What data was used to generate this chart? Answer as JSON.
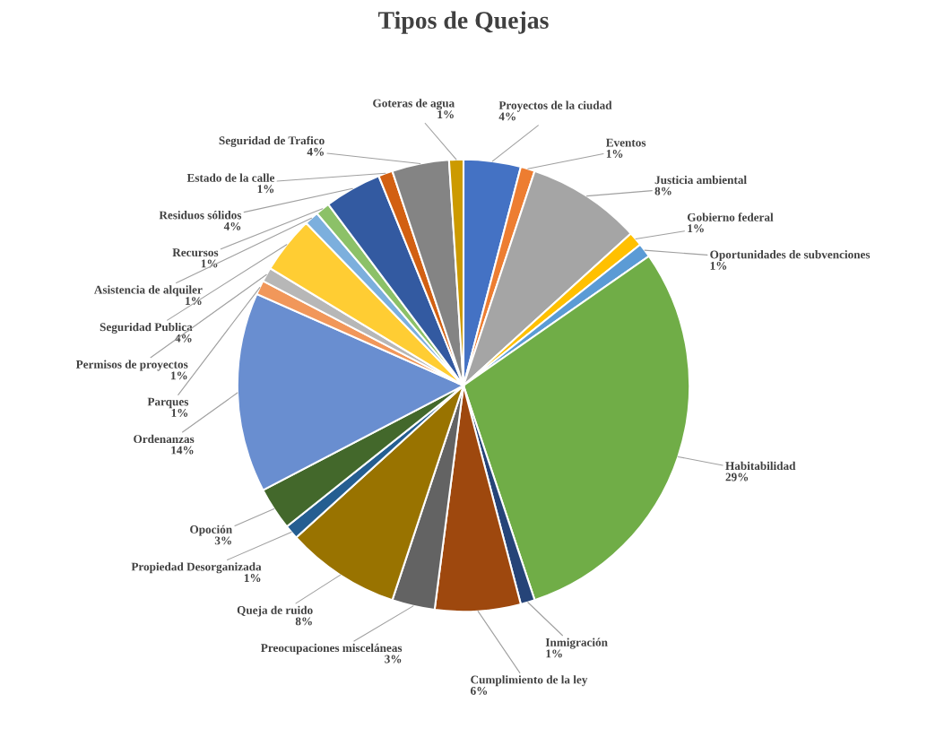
{
  "chart_data": {
    "type": "pie",
    "title": "Tipos de Quejas",
    "categories": [
      "Proyectos de la ciudad",
      "Eventos",
      "Justicia ambiental",
      "Gobierno federal",
      "Oportunidades de subvenciones",
      "Habitabilidad",
      "Inmigración",
      "Cumplimiento de la ley",
      "Preocupaciones misceláneas",
      "Queja de ruido",
      "Propiedad Desorganizada",
      "Opoción",
      "Ordenanzas",
      "Parques",
      "Permisos de proyectos",
      "Seguridad Publica",
      "Asistencia de alquiler",
      "Recursos",
      "Residuos sólidos",
      "Estado de la calle",
      "Seguridad de Trafico",
      "Goteras de agua"
    ],
    "values": [
      4,
      1,
      8,
      1,
      1,
      29,
      1,
      6,
      3,
      8,
      1,
      3,
      14,
      1,
      1,
      4,
      1,
      1,
      4,
      1,
      4,
      1
    ],
    "value_labels": [
      "4%",
      "1%",
      "8%",
      "1%",
      "1%",
      "29%",
      "1%",
      "6%",
      "3%",
      "8%",
      "1%",
      "3%",
      "14%",
      "1%",
      "1%",
      "4%",
      "1%",
      "1%",
      "4%",
      "1%",
      "4%",
      "1%"
    ],
    "colors": [
      "#4472c4",
      "#ed7d31",
      "#a5a5a5",
      "#ffc000",
      "#5b9bd5",
      "#70ad47",
      "#264478",
      "#9e480e",
      "#636363",
      "#997300",
      "#255e91",
      "#43682b",
      "#698ed0",
      "#f1975a",
      "#b7b7b7",
      "#ffcd33",
      "#7cafdd",
      "#8cc168",
      "#335aa1",
      "#d26012",
      "#848484",
      "#cc9a00"
    ],
    "legend": false
  }
}
